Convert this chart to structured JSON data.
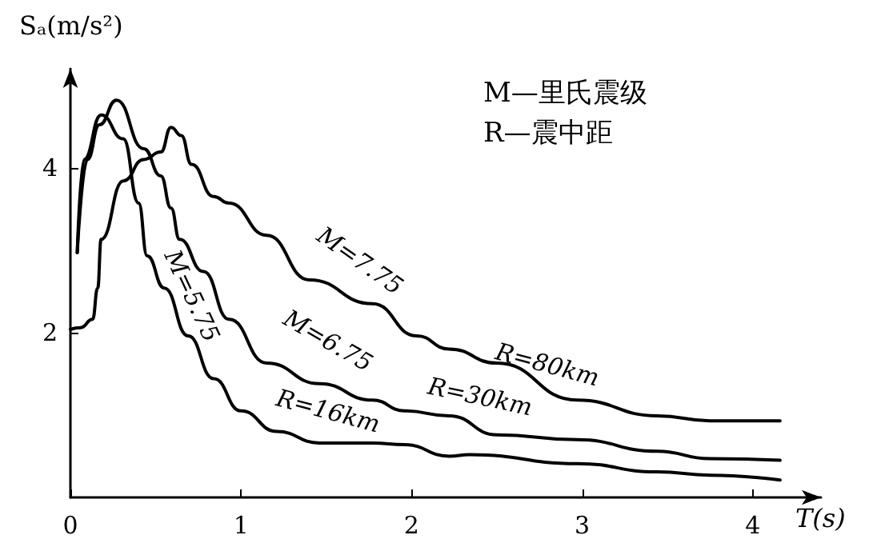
{
  "chart_data": {
    "type": "line",
    "ylabel": "Sₐ(m/s²)",
    "xlabel": "T(s)",
    "xlim": [
      0,
      4.4
    ],
    "ylim": [
      0,
      5.2
    ],
    "xticks": [
      0,
      1,
      2,
      3,
      4
    ],
    "yticks": [
      2,
      4
    ],
    "grid": false,
    "marker": "none",
    "line_style": "solid",
    "series": [
      {
        "color": "#000000",
        "x": [
          0.04,
          0.08,
          0.18,
          0.31,
          0.4,
          0.45,
          0.55,
          0.69,
          0.84,
          1.0,
          1.21,
          1.46,
          1.77,
          1.96,
          2.22,
          2.34,
          2.97,
          3.44,
          3.75,
          4.16
        ],
        "values": [
          2.97,
          4.1,
          4.64,
          4.35,
          3.57,
          2.93,
          2.54,
          1.96,
          1.44,
          1.05,
          0.8,
          0.66,
          0.66,
          0.64,
          0.5,
          0.52,
          0.41,
          0.31,
          0.27,
          0.21
        ]
      },
      {
        "color": "#000000",
        "x": [
          0.04,
          0.1,
          0.17,
          0.27,
          0.43,
          0.53,
          0.59,
          0.64,
          0.78,
          0.93,
          1.15,
          1.46,
          1.77,
          1.96,
          2.22,
          2.5,
          2.97,
          3.44,
          3.75,
          4.16
        ],
        "values": [
          2.97,
          4.1,
          4.52,
          4.82,
          4.23,
          3.9,
          3.51,
          3.13,
          2.74,
          2.16,
          1.63,
          1.38,
          1.18,
          1.05,
          0.99,
          0.76,
          0.7,
          0.56,
          0.47,
          0.45
        ]
      },
      {
        "color": "#000000",
        "x": [
          0,
          0.06,
          0.13,
          0.16,
          0.18,
          0.31,
          0.43,
          0.53,
          0.59,
          0.65,
          0.71,
          0.84,
          0.93,
          1.15,
          1.4,
          1.77,
          2.03,
          2.22,
          2.5,
          2.97,
          3.44,
          3.75,
          4.16
        ],
        "values": [
          2.04,
          2.06,
          2.16,
          2.54,
          3.13,
          3.84,
          4.1,
          4.19,
          4.49,
          4.39,
          4.04,
          3.65,
          3.57,
          3.18,
          2.64,
          2.35,
          1.96,
          1.8,
          1.63,
          1.18,
          0.99,
          0.93,
          0.93
        ]
      }
    ],
    "annotations": [
      "M=5.75",
      "R=16km",
      "M=6.75",
      "R=30km",
      "M=7.75",
      "R=80km",
      "M—里氏震级",
      "R—震中距"
    ]
  }
}
